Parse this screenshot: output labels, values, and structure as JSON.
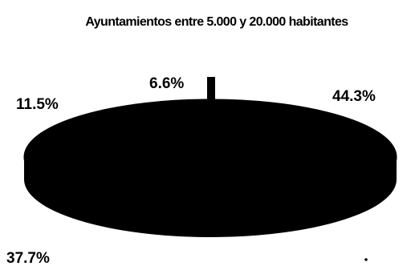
{
  "chart_data": {
    "type": "pie",
    "style": "3d",
    "title": "Ayuntamientos entre 5.000 y 20.000 habitantes",
    "slices": [
      {
        "label": "44.3%",
        "value": 44.3
      },
      {
        "label": "37.7%",
        "value": 37.7
      },
      {
        "label": "11.5%",
        "value": 11.5
      },
      {
        "label": "6.6%",
        "value": 6.6
      }
    ],
    "legend": "none",
    "colors": {
      "fill": "#000000",
      "background": "#ffffff"
    }
  }
}
